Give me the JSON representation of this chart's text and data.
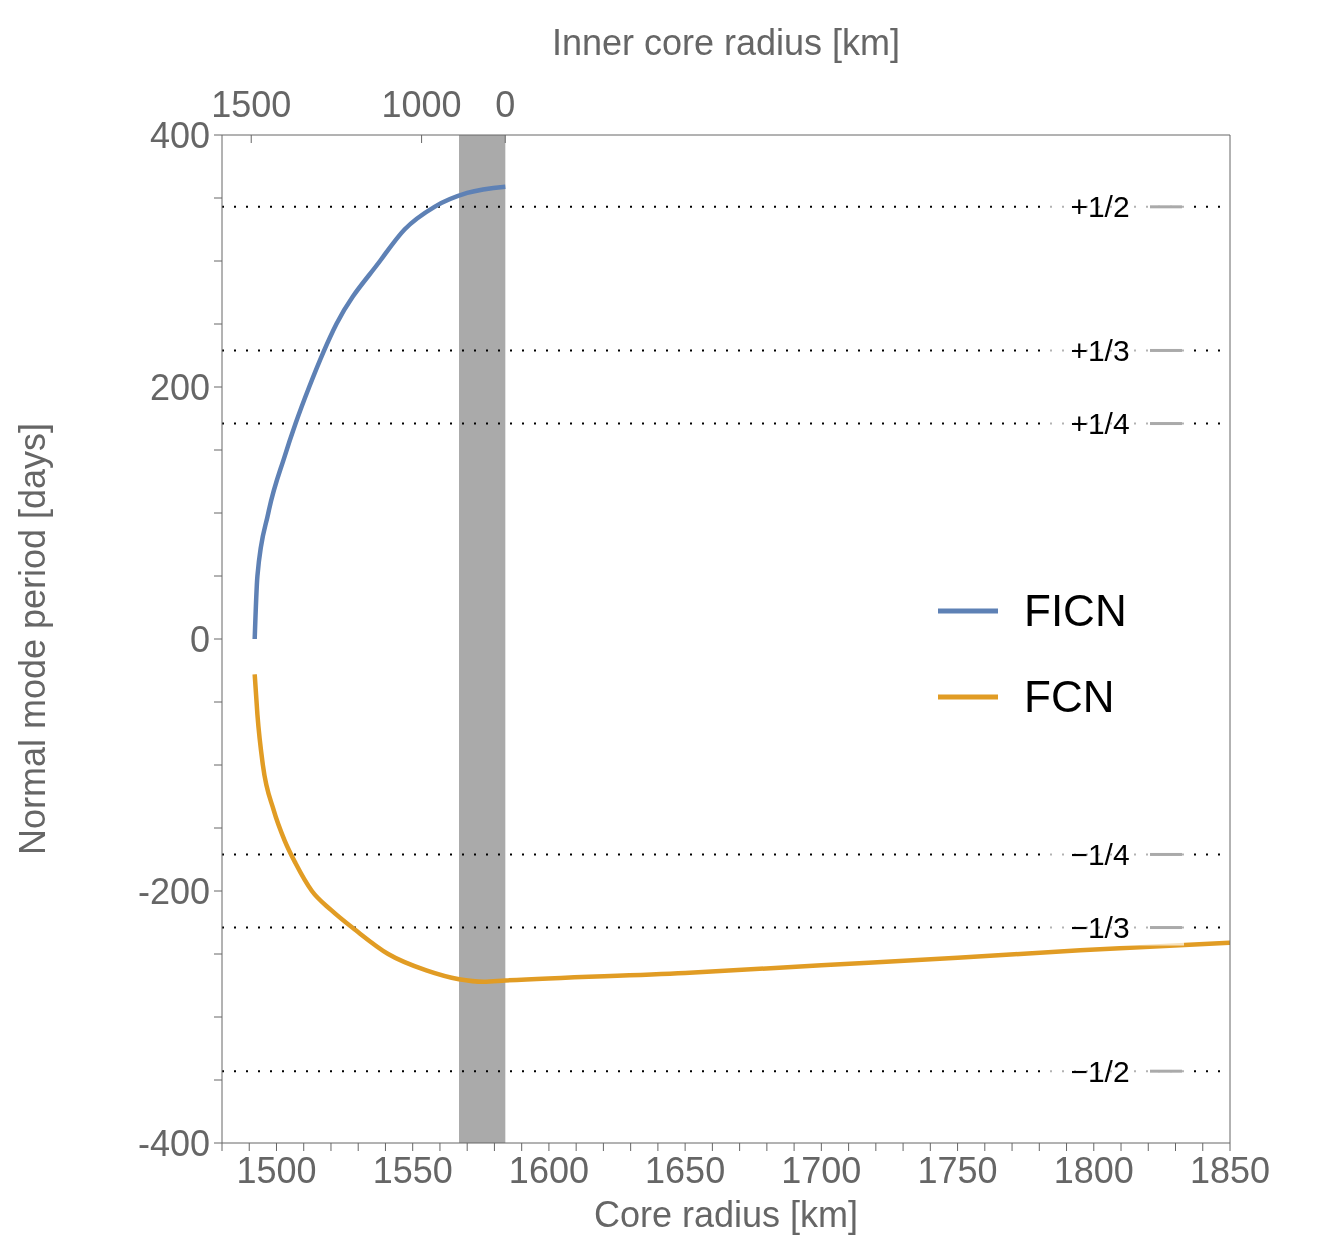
{
  "chart_data": {
    "type": "line",
    "xlabel": "Core radius [km]",
    "ylabel": "Normal mode period [days]",
    "x2label": "Inner core radius [km]",
    "xlim": [
      1480,
      1850
    ],
    "ylim": [
      -400,
      400
    ],
    "xticks": [
      {
        "value": 1480,
        "label": null
      },
      {
        "value": 1490,
        "label": null
      },
      1500,
      {
        "value": 1510,
        "label": null
      },
      {
        "value": 1520,
        "label": null
      },
      {
        "value": 1530,
        "label": null
      },
      {
        "value": 1540,
        "label": null
      },
      1550,
      {
        "value": 1560,
        "label": null
      },
      {
        "value": 1570,
        "label": null
      },
      {
        "value": 1580,
        "label": null
      },
      {
        "value": 1590,
        "label": null
      },
      1600,
      {
        "value": 1610,
        "label": null
      },
      {
        "value": 1620,
        "label": null
      },
      {
        "value": 1630,
        "label": null
      },
      {
        "value": 1640,
        "label": null
      },
      1650,
      {
        "value": 1660,
        "label": null
      },
      {
        "value": 1670,
        "label": null
      },
      {
        "value": 1680,
        "label": null
      },
      {
        "value": 1690,
        "label": null
      },
      1700,
      {
        "value": 1710,
        "label": null
      },
      {
        "value": 1720,
        "label": null
      },
      {
        "value": 1730,
        "label": null
      },
      {
        "value": 1740,
        "label": null
      },
      1750,
      {
        "value": 1760,
        "label": null
      },
      {
        "value": 1770,
        "label": null
      },
      {
        "value": 1780,
        "label": null
      },
      {
        "value": 1790,
        "label": null
      },
      1800,
      {
        "value": 1810,
        "label": null
      },
      {
        "value": 1820,
        "label": null
      },
      {
        "value": 1830,
        "label": null
      },
      {
        "value": 1840,
        "label": null
      },
      1850
    ],
    "yticks": [
      -400,
      {
        "value": -350,
        "label": null
      },
      {
        "value": -300,
        "label": null
      },
      {
        "value": -250,
        "label": null
      },
      -200,
      {
        "value": -150,
        "label": null
      },
      {
        "value": -100,
        "label": null
      },
      {
        "value": -50,
        "label": null
      },
      0,
      {
        "value": 50,
        "label": null
      },
      {
        "value": 100,
        "label": null
      },
      {
        "value": 150,
        "label": null
      },
      200,
      {
        "value": 250,
        "label": null
      },
      {
        "value": 300,
        "label": null
      },
      {
        "value": 350,
        "label": null
      },
      400
    ],
    "legend": "right",
    "series": [
      {
        "name": "FICN",
        "color": "#5e81b5",
        "x": [
          1492,
          1493,
          1497,
          1503,
          1507,
          1512,
          1522,
          1538,
          1547,
          1558,
          1570,
          1584
        ],
        "values": [
          0,
          50,
          100,
          145,
          171,
          200,
          250,
          300,
          325,
          343,
          354,
          359
        ]
      },
      {
        "name": "FCN",
        "color": "#e19c24",
        "x": [
          1492,
          1493,
          1495,
          1499,
          1503,
          1507,
          1513,
          1520,
          1529,
          1541,
          1555,
          1567,
          1576,
          1584,
          1650,
          1700,
          1750,
          1795,
          1850
        ],
        "values": [
          -28,
          -60,
          -100,
          -136,
          -160,
          -178,
          -200,
          -215,
          -231,
          -250,
          -263,
          -270,
          -272,
          -271,
          -265,
          -259,
          -253,
          -247,
          -241
        ]
      }
    ],
    "ref_lines": [
      {
        "axis": "y",
        "value": 343,
        "color": "#000000",
        "line_style": "dotted"
      },
      {
        "axis": "y",
        "value": 229,
        "color": "#000000",
        "line_style": "dotted"
      },
      {
        "axis": "y",
        "value": 171,
        "color": "#000000",
        "line_style": "dotted"
      },
      {
        "axis": "y",
        "value": -171,
        "color": "#000000",
        "line_style": "dotted"
      },
      {
        "axis": "y",
        "value": -229,
        "color": "#000000",
        "line_style": "dotted"
      },
      {
        "axis": "y",
        "value": -343,
        "color": "#000000",
        "line_style": "dotted"
      }
    ],
    "annotations": [
      {
        "text": "+1/2",
        "y": 343
      },
      {
        "text": "+1/3",
        "y": 229
      },
      {
        "text": "+1/4",
        "y": 171
      },
      {
        "text": "−1/4",
        "y": -171
      },
      {
        "text": "−1/3",
        "y": -229
      },
      {
        "text": "−1/2",
        "y": -343
      },
      "1500",
      "1000",
      "0"
    ],
    "bands": [
      {
        "axis": "x",
        "from": 1567,
        "to": 1584,
        "color": "#aaaaaa"
      }
    ]
  }
}
